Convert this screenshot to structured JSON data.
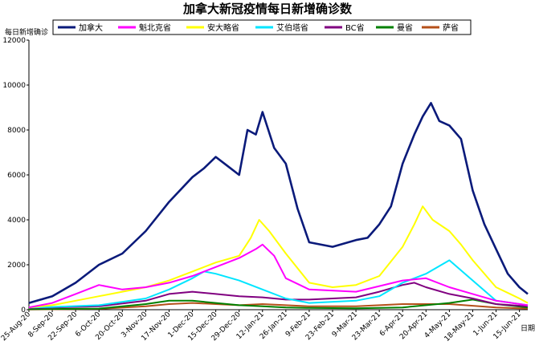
{
  "chart_data": {
    "type": "line",
    "title": "加拿大新冠疫情每日新增确诊数",
    "ylabel": "每日新增确诊",
    "xlabel": "日期",
    "ylim": [
      0,
      12000
    ],
    "yticks": [
      0,
      2000,
      4000,
      6000,
      8000,
      10000,
      12000
    ],
    "ytick_labels": [
      "0",
      "2000",
      "4000",
      "6000",
      "8000",
      "10000",
      "12000"
    ],
    "x_start": "2020-08-25",
    "x_end": "2021-06-20",
    "xticks": [
      "2020-08-25",
      "2020-09-08",
      "2020-09-22",
      "2020-10-06",
      "2020-10-20",
      "2020-11-03",
      "2020-11-17",
      "2020-12-01",
      "2020-12-15",
      "2020-12-29",
      "2021-01-12",
      "2021-01-26",
      "2021-02-09",
      "2021-02-23",
      "2021-03-09",
      "2021-03-23",
      "2021-04-06",
      "2021-04-20",
      "2021-05-04",
      "2021-05-18",
      "2021-06-01",
      "2021-06-15"
    ],
    "xtick_labels": [
      "25-Aug-20",
      "8-Sep-20",
      "22-Sep-20",
      "6-Oct-20",
      "20-Oct-20",
      "3-Nov-20",
      "17-Nov-20",
      "1-Dec-20",
      "15-Dec-20",
      "29-Dec-20",
      "12-Jan-21",
      "26-Jan-21",
      "9-Feb-21",
      "23-Feb-21",
      "9-Mar-21",
      "23-Mar-21",
      "6-Apr-21",
      "20-Apr-21",
      "4-May-21",
      "18-May-21",
      "1-Jun-21",
      "15-Jun-21"
    ],
    "legend_position": "top",
    "grid": false,
    "series": [
      {
        "name": "加拿大",
        "color": "#0a1a7a",
        "x": [
          "2020-08-25",
          "2020-09-08",
          "2020-09-22",
          "2020-10-06",
          "2020-10-20",
          "2020-11-03",
          "2020-11-17",
          "2020-12-01",
          "2020-12-08",
          "2020-12-15",
          "2020-12-22",
          "2020-12-29",
          "2021-01-03",
          "2021-01-08",
          "2021-01-12",
          "2021-01-19",
          "2021-01-26",
          "2021-02-02",
          "2021-02-09",
          "2021-02-23",
          "2021-03-09",
          "2021-03-16",
          "2021-03-23",
          "2021-03-30",
          "2021-04-06",
          "2021-04-13",
          "2021-04-18",
          "2021-04-23",
          "2021-04-28",
          "2021-05-04",
          "2021-05-11",
          "2021-05-18",
          "2021-05-25",
          "2021-06-01",
          "2021-06-08",
          "2021-06-15",
          "2021-06-20"
        ],
        "y": [
          300,
          600,
          1200,
          2000,
          2500,
          3500,
          4800,
          5900,
          6300,
          6800,
          6400,
          6000,
          8000,
          7800,
          8800,
          7200,
          6500,
          4500,
          3000,
          2800,
          3100,
          3200,
          3800,
          4600,
          6500,
          7800,
          8600,
          9200,
          8400,
          8200,
          7600,
          5300,
          3800,
          2700,
          1600,
          1000,
          700
        ]
      },
      {
        "name": "魁北克省",
        "color": "#ff00ff",
        "x": [
          "2020-08-25",
          "2020-09-08",
          "2020-09-22",
          "2020-10-06",
          "2020-10-20",
          "2020-11-03",
          "2020-11-17",
          "2020-12-01",
          "2020-12-15",
          "2020-12-29",
          "2021-01-08",
          "2021-01-12",
          "2021-01-19",
          "2021-01-26",
          "2021-02-09",
          "2021-03-09",
          "2021-04-06",
          "2021-04-20",
          "2021-05-04",
          "2021-05-18",
          "2021-06-01",
          "2021-06-20"
        ],
        "y": [
          100,
          300,
          700,
          1100,
          900,
          1000,
          1200,
          1500,
          1900,
          2300,
          2700,
          2900,
          2400,
          1400,
          900,
          800,
          1300,
          1400,
          1000,
          700,
          400,
          200
        ]
      },
      {
        "name": "安大略省",
        "color": "#ffff00",
        "x": [
          "2020-08-25",
          "2020-09-08",
          "2020-09-22",
          "2020-10-06",
          "2020-10-20",
          "2020-11-03",
          "2020-11-17",
          "2020-12-01",
          "2020-12-15",
          "2020-12-29",
          "2021-01-05",
          "2021-01-10",
          "2021-01-16",
          "2021-01-26",
          "2021-02-09",
          "2021-02-23",
          "2021-03-09",
          "2021-03-23",
          "2021-04-06",
          "2021-04-13",
          "2021-04-18",
          "2021-04-24",
          "2021-05-04",
          "2021-05-11",
          "2021-05-18",
          "2021-06-01",
          "2021-06-15",
          "2021-06-20"
        ],
        "y": [
          100,
          200,
          400,
          600,
          800,
          1000,
          1300,
          1700,
          2100,
          2400,
          3200,
          4000,
          3500,
          2500,
          1200,
          1000,
          1100,
          1500,
          2800,
          3800,
          4600,
          4000,
          3500,
          2900,
          2200,
          1000,
          500,
          300
        ]
      },
      {
        "name": "艾伯塔省",
        "color": "#00e5ff",
        "x": [
          "2020-08-25",
          "2020-09-08",
          "2020-10-06",
          "2020-11-03",
          "2020-11-17",
          "2020-12-01",
          "2020-12-08",
          "2020-12-15",
          "2020-12-29",
          "2021-01-12",
          "2021-01-26",
          "2021-02-09",
          "2021-03-09",
          "2021-03-23",
          "2021-04-06",
          "2021-04-20",
          "2021-05-04",
          "2021-05-18",
          "2021-06-01",
          "2021-06-20"
        ],
        "y": [
          100,
          120,
          200,
          500,
          900,
          1400,
          1700,
          1600,
          1300,
          900,
          500,
          300,
          400,
          600,
          1200,
          1600,
          2200,
          1300,
          400,
          200
        ]
      },
      {
        "name": "BC省",
        "color": "#800080",
        "x": [
          "2020-08-25",
          "2020-09-08",
          "2020-10-06",
          "2020-11-03",
          "2020-11-17",
          "2020-12-01",
          "2020-12-15",
          "2020-12-29",
          "2021-01-12",
          "2021-01-26",
          "2021-02-09",
          "2021-03-09",
          "2021-03-23",
          "2021-04-06",
          "2021-04-13",
          "2021-04-20",
          "2021-05-04",
          "2021-05-18",
          "2021-06-01",
          "2021-06-20"
        ],
        "y": [
          80,
          100,
          150,
          400,
          700,
          800,
          700,
          600,
          550,
          450,
          450,
          550,
          800,
          1100,
          1200,
          1000,
          700,
          500,
          250,
          150
        ]
      },
      {
        "name": "曼省",
        "color": "#008000",
        "x": [
          "2020-08-25",
          "2020-10-06",
          "2020-11-03",
          "2020-11-17",
          "2020-12-01",
          "2020-12-15",
          "2020-12-29",
          "2021-01-12",
          "2021-01-26",
          "2021-02-09",
          "2021-03-09",
          "2021-04-06",
          "2021-05-04",
          "2021-05-18",
          "2021-06-01",
          "2021-06-20"
        ],
        "y": [
          20,
          50,
          250,
          400,
          400,
          300,
          200,
          150,
          100,
          80,
          60,
          100,
          300,
          450,
          250,
          100
        ]
      },
      {
        "name": "萨省",
        "color": "#b5501a",
        "x": [
          "2020-08-25",
          "2020-10-06",
          "2020-11-03",
          "2020-11-17",
          "2020-12-01",
          "2020-12-15",
          "2020-12-29",
          "2021-01-12",
          "2021-01-26",
          "2021-02-09",
          "2021-03-09",
          "2021-04-06",
          "2021-05-04",
          "2021-06-01",
          "2021-06-20"
        ],
        "y": [
          10,
          40,
          150,
          250,
          300,
          250,
          200,
          250,
          200,
          150,
          150,
          250,
          250,
          100,
          50
        ]
      }
    ]
  }
}
